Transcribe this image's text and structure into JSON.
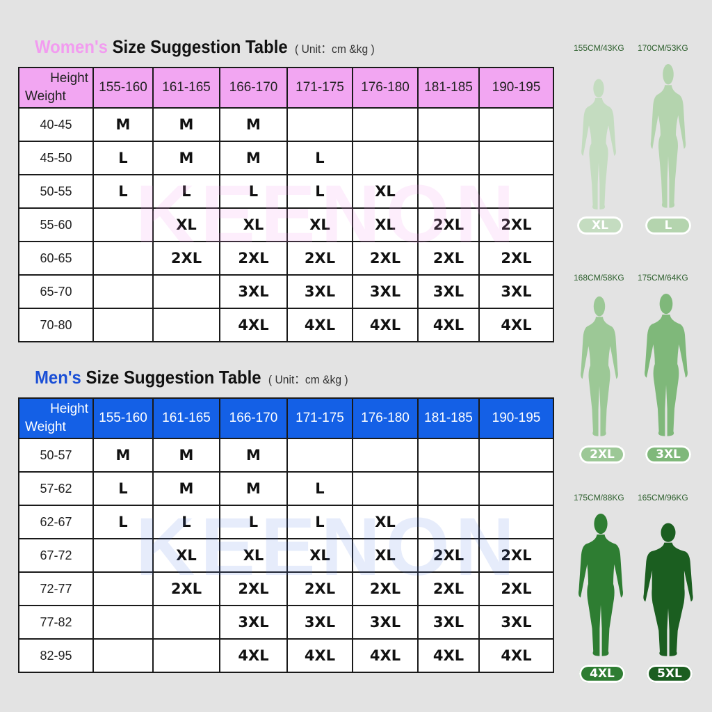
{
  "women": {
    "title_hl": "Women's",
    "title_rest": "Size Suggestion Table",
    "unit": "( Unit：cm &kg )",
    "corner_height": "Height",
    "corner_weight": "Weight",
    "columns": [
      "155-160",
      "161-165",
      "166-170",
      "171-175",
      "176-180",
      "181-185",
      "190-195"
    ],
    "rows": [
      {
        "w": "40-45",
        "s": [
          "M",
          "M",
          "M",
          "",
          "",
          "",
          ""
        ]
      },
      {
        "w": "45-50",
        "s": [
          "L",
          "M",
          "M",
          "L",
          "",
          "",
          ""
        ]
      },
      {
        "w": "50-55",
        "s": [
          "L",
          "L",
          "L",
          "L",
          "XL",
          "",
          ""
        ]
      },
      {
        "w": "55-60",
        "s": [
          "",
          "XL",
          "XL",
          "XL",
          "XL",
          "2XL",
          "2XL"
        ]
      },
      {
        "w": "60-65",
        "s": [
          "",
          "2XL",
          "2XL",
          "2XL",
          "2XL",
          "2XL",
          "2XL"
        ]
      },
      {
        "w": "65-70",
        "s": [
          "",
          "",
          "3XL",
          "3XL",
          "3XL",
          "3XL",
          "3XL"
        ]
      },
      {
        "w": "70-80",
        "s": [
          "",
          "",
          "4XL",
          "4XL",
          "4XL",
          "4XL",
          "4XL"
        ]
      }
    ]
  },
  "men": {
    "title_hl": "Men's",
    "title_rest": "Size Suggestion Table",
    "unit": "( Unit：cm &kg )",
    "corner_height": "Height",
    "corner_weight": "Weight",
    "columns": [
      "155-160",
      "161-165",
      "166-170",
      "171-175",
      "176-180",
      "181-185",
      "190-195"
    ],
    "rows": [
      {
        "w": "50-57",
        "s": [
          "M",
          "M",
          "M",
          "",
          "",
          "",
          ""
        ]
      },
      {
        "w": "57-62",
        "s": [
          "L",
          "M",
          "M",
          "L",
          "",
          "",
          ""
        ]
      },
      {
        "w": "62-67",
        "s": [
          "L",
          "L",
          "L",
          "L",
          "XL",
          "",
          ""
        ]
      },
      {
        "w": "67-72",
        "s": [
          "",
          "XL",
          "XL",
          "XL",
          "XL",
          "2XL",
          "2XL"
        ]
      },
      {
        "w": "72-77",
        "s": [
          "",
          "2XL",
          "2XL",
          "2XL",
          "2XL",
          "2XL",
          "2XL"
        ]
      },
      {
        "w": "77-82",
        "s": [
          "",
          "",
          "3XL",
          "3XL",
          "3XL",
          "3XL",
          "3XL"
        ]
      },
      {
        "w": "82-95",
        "s": [
          "",
          "",
          "4XL",
          "4XL",
          "4XL",
          "4XL",
          "4XL"
        ]
      }
    ]
  },
  "watermark": "KEENON",
  "figures": [
    {
      "label": "155CM/43KG",
      "size": "XL",
      "color": "#c4dcc0",
      "badge": "#c4dcc0"
    },
    {
      "label": "170CM/53KG",
      "size": "L",
      "color": "#b4d4ae",
      "badge": "#b4d4ae"
    },
    {
      "label": "168CM/58KG",
      "size": "2XL",
      "color": "#9cc896",
      "badge": "#9cc896"
    },
    {
      "label": "175CM/64KG",
      "size": "3XL",
      "color": "#7fb87a",
      "badge": "#7fb87a"
    },
    {
      "label": "175CM/88KG",
      "size": "4XL",
      "color": "#2e7d32",
      "badge": "#2e7d32"
    },
    {
      "label": "165CM/96KG",
      "size": "5XL",
      "color": "#1b5e20",
      "badge": "#1b5e20"
    }
  ]
}
